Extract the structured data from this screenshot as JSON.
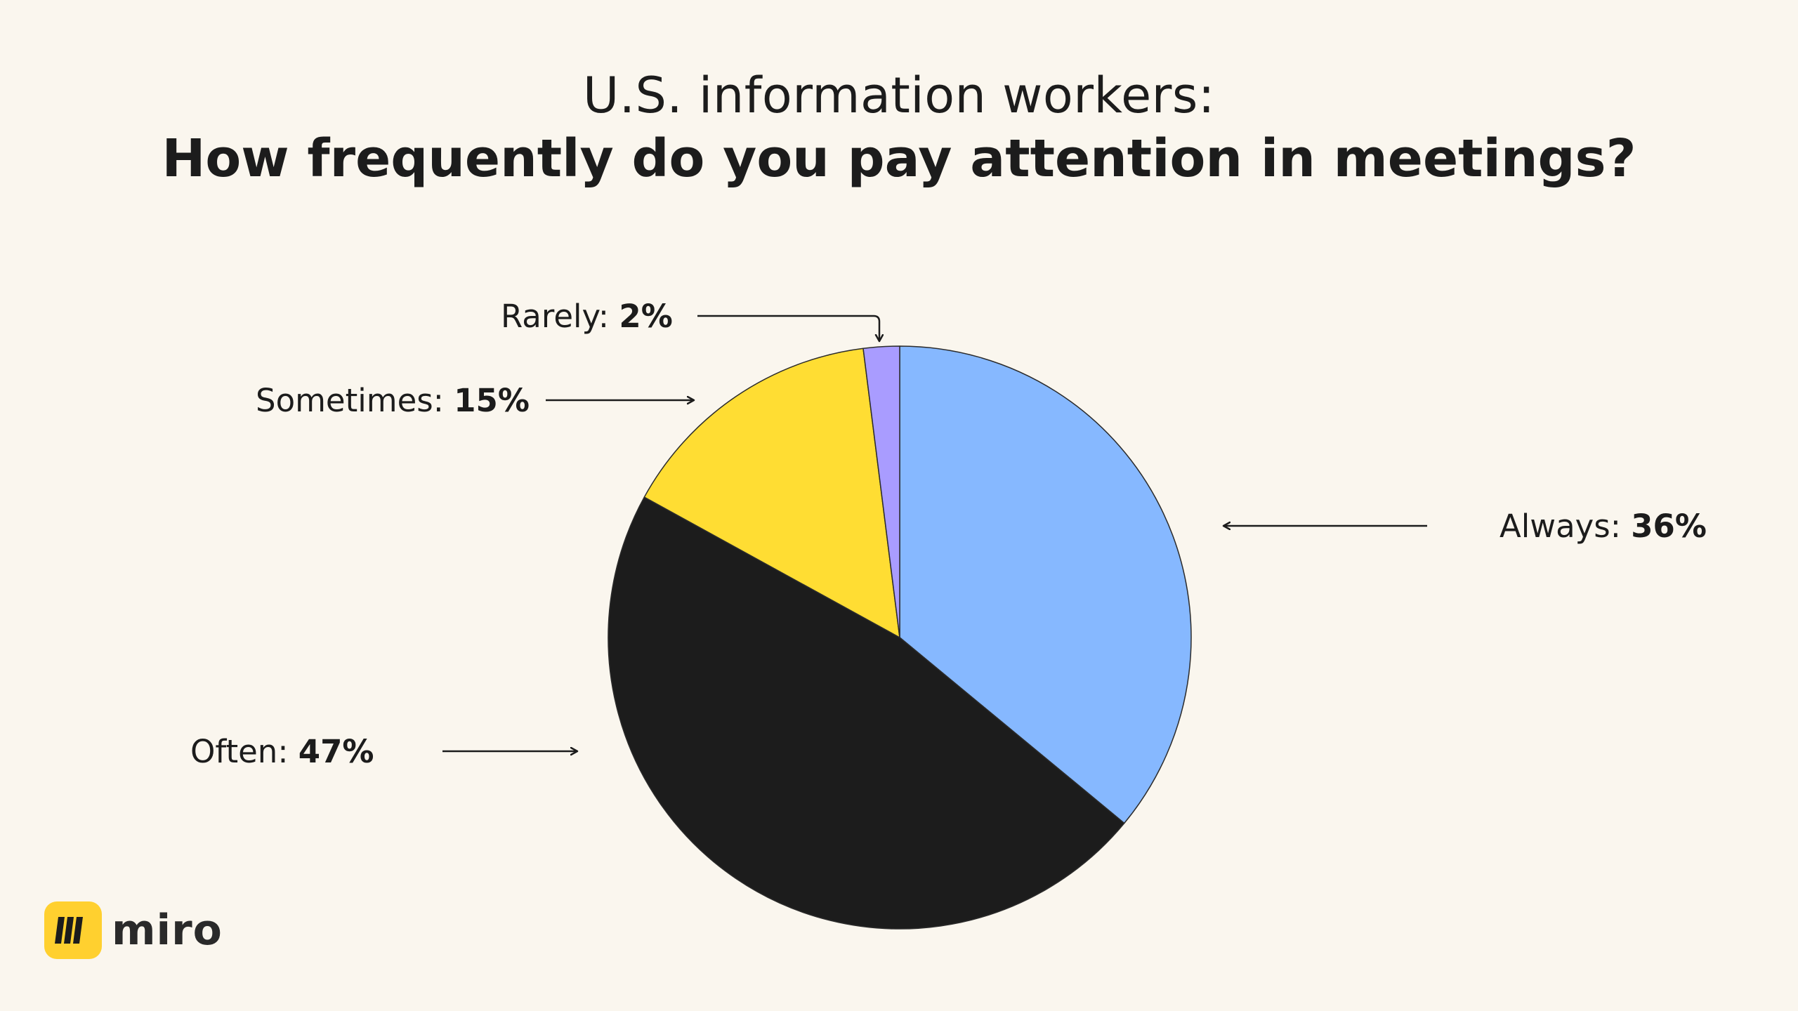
{
  "title_line1": "U.S. information workers:",
  "title_line2": "How frequently do you pay attention in meetings?",
  "brand": {
    "name": "miro",
    "color": "#ffd02f"
  },
  "chart_data": {
    "type": "pie",
    "title": "U.S. information workers: How frequently do you pay attention in meetings?",
    "unit": "%",
    "slices": [
      {
        "name": "Always",
        "label": "Always:",
        "value": 36,
        "value_label": "36%",
        "color": "#86b8ff"
      },
      {
        "name": "Often",
        "label": "Often:",
        "value": 47,
        "value_label": "47%",
        "color": "#1c1c1c"
      },
      {
        "name": "Sometimes",
        "label": "Sometimes:",
        "value": 15,
        "value_label": "15%",
        "color": "#ffdd33"
      },
      {
        "name": "Rarely",
        "label": "Rarely:",
        "value": 2,
        "value_label": "2%",
        "color": "#a99cff"
      }
    ],
    "start": "12 o'clock",
    "direction": "clockwise"
  }
}
